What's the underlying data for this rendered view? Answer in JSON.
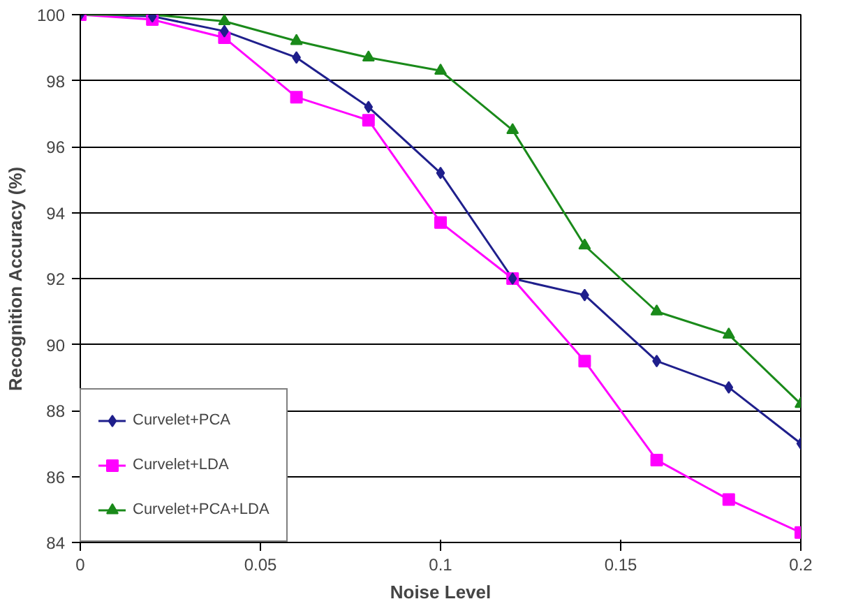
{
  "chart_data": {
    "type": "line",
    "xlabel": "Noise Level",
    "ylabel": "Recognition Accuracy (%)",
    "x": [
      0,
      0.02,
      0.04,
      0.06,
      0.08,
      0.1,
      0.12,
      0.14,
      0.16,
      0.18,
      0.2
    ],
    "series": [
      {
        "name": "Curvelet+PCA",
        "color": "#1f1f8c",
        "marker": "diamond",
        "values": [
          100,
          99.95,
          99.5,
          98.7,
          97.2,
          95.2,
          92.0,
          91.5,
          89.5,
          88.7,
          87.0
        ]
      },
      {
        "name": "Curvelet+LDA",
        "color": "#ff00ff",
        "marker": "square",
        "values": [
          100,
          99.85,
          99.3,
          97.5,
          96.8,
          93.7,
          92.0,
          89.5,
          86.5,
          85.3,
          84.3
        ]
      },
      {
        "name": "Curvelet+PCA+LDA",
        "color": "#1a8a1a",
        "marker": "triangle",
        "values": [
          100,
          100,
          99.8,
          99.2,
          98.7,
          98.3,
          96.5,
          93.0,
          91.0,
          90.3,
          88.2
        ]
      }
    ],
    "xlim": [
      0,
      0.2
    ],
    "xticks": [
      0,
      0.05,
      0.1,
      0.15,
      0.2
    ],
    "ylim": [
      84,
      100
    ],
    "yticks": [
      84,
      86,
      88,
      90,
      92,
      94,
      96,
      98,
      100
    ],
    "grid": "y",
    "legend": "bottom left",
    "line_style": "solid"
  }
}
